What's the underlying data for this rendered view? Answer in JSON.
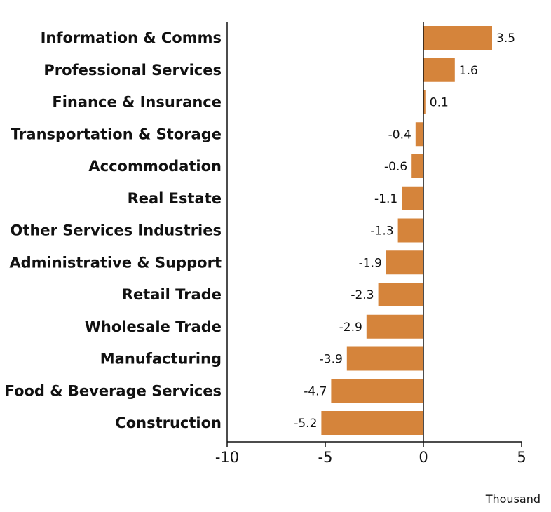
{
  "chart_data": {
    "type": "bar",
    "orientation": "horizontal",
    "categories": [
      "Information & Comms",
      "Professional Services",
      "Finance & Insurance",
      "Transportation & Storage",
      "Accommodation",
      "Real Estate",
      "Other Services Industries",
      "Administrative & Support",
      "Retail Trade",
      "Wholesale Trade",
      "Manufacturing",
      "Food & Beverage Services",
      "Construction"
    ],
    "values": [
      3.5,
      1.6,
      0.1,
      -0.4,
      -0.6,
      -1.1,
      -1.3,
      -1.9,
      -2.3,
      -2.9,
      -3.9,
      -4.7,
      -5.2
    ],
    "value_labels": [
      "3.5",
      "1.6",
      "0.1",
      "-0.4",
      "-0.6",
      "-1.1",
      "-1.3",
      "-1.9",
      "-2.3",
      "-2.9",
      "-3.9",
      "-4.7",
      "-5.2"
    ],
    "xlim": [
      -10,
      5
    ],
    "xticks": [
      -10,
      -5,
      0,
      5
    ],
    "xtick_labels": [
      "-10",
      "-5",
      "0",
      "5"
    ],
    "unit_label": "Thousand",
    "bar_color": "#d5843b",
    "axis_color": "#111111",
    "grid": false,
    "legend": "none"
  }
}
